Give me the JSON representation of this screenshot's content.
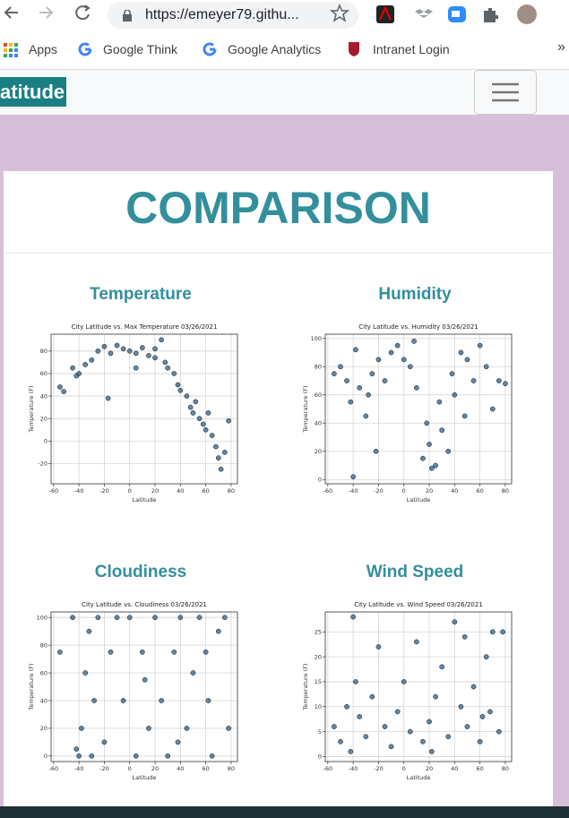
{
  "browser": {
    "url": "https://emeyer79.githu...",
    "bookmarks": [
      "Apps",
      "Google Think",
      "Google Analytics",
      "Intranet Login"
    ],
    "more": "»"
  },
  "navbar": {
    "brand": "atitude"
  },
  "page": {
    "heading": "COMPARISON"
  },
  "panels": [
    {
      "heading": "Temperature",
      "chart_data": {
        "type": "scatter",
        "title": "City Latitude vs. Max Temperature 03/26/2021",
        "x_label": "Latitude",
        "y_label": "Temperature (F)",
        "color": "#2b5f8a",
        "xlim": [
          -62,
          85
        ],
        "xticks": [
          -60,
          -40,
          -20,
          0,
          20,
          40,
          60,
          80
        ],
        "ylim": [
          -38,
          95
        ],
        "yticks": [
          -20,
          0,
          20,
          40,
          60,
          80
        ],
        "grid": true,
        "x": [
          -55,
          -52,
          -45,
          -40,
          -35,
          -30,
          -25,
          -20,
          -17,
          -15,
          -10,
          -5,
          0,
          5,
          10,
          15,
          20,
          25,
          28,
          30,
          35,
          38,
          40,
          45,
          48,
          50,
          52,
          55,
          58,
          60,
          62,
          65,
          68,
          70,
          72,
          75,
          78,
          -42,
          5,
          20
        ],
        "values": [
          48,
          44,
          65,
          60,
          68,
          72,
          80,
          84,
          38,
          78,
          85,
          82,
          80,
          78,
          83,
          76,
          74,
          90,
          70,
          65,
          60,
          50,
          45,
          40,
          30,
          25,
          35,
          20,
          15,
          10,
          25,
          5,
          -5,
          -15,
          -25,
          -10,
          18,
          58,
          65,
          82
        ]
      }
    },
    {
      "heading": "Humidity",
      "chart_data": {
        "type": "scatter",
        "title": "City Latitude vs. Humidity 03/26/2021",
        "x_label": "Latitude",
        "y_label": "Temperature (F)",
        "color": "#2b5f8a",
        "xlim": [
          -62,
          85
        ],
        "xticks": [
          -60,
          -40,
          -20,
          0,
          20,
          40,
          60,
          80
        ],
        "ylim": [
          -3,
          103
        ],
        "yticks": [
          0,
          20,
          40,
          60,
          80,
          100
        ],
        "grid": true,
        "x": [
          -55,
          -50,
          -45,
          -42,
          -40,
          -38,
          -35,
          -30,
          -25,
          -22,
          -20,
          -15,
          -10,
          -5,
          0,
          5,
          10,
          15,
          18,
          20,
          25,
          28,
          30,
          35,
          38,
          40,
          45,
          50,
          55,
          60,
          65,
          70,
          75,
          80,
          48,
          8,
          -28,
          22
        ],
        "values": [
          75,
          80,
          70,
          55,
          2,
          92,
          65,
          45,
          75,
          20,
          85,
          70,
          90,
          95,
          85,
          80,
          65,
          15,
          40,
          25,
          10,
          55,
          35,
          20,
          75,
          60,
          90,
          85,
          70,
          95,
          80,
          50,
          70,
          68,
          45,
          98,
          60,
          8
        ]
      }
    },
    {
      "heading": "Cloudiness",
      "chart_data": {
        "type": "scatter",
        "title": "City Latitude vs. Cloudiness 03/26/2021",
        "x_label": "Latitude",
        "y_label": "Temperature (F)",
        "color": "#2b5f8a",
        "xlim": [
          -62,
          85
        ],
        "xticks": [
          -60,
          -40,
          -20,
          0,
          20,
          40,
          60,
          80
        ],
        "ylim": [
          -4,
          104
        ],
        "yticks": [
          0,
          20,
          40,
          60,
          80,
          100
        ],
        "grid": true,
        "x": [
          -55,
          -45,
          -40,
          -38,
          -35,
          -30,
          -28,
          -25,
          -20,
          -15,
          -10,
          -5,
          0,
          5,
          10,
          15,
          20,
          25,
          30,
          35,
          40,
          45,
          50,
          55,
          60,
          65,
          70,
          75,
          78,
          -42,
          -32,
          12,
          38,
          62
        ],
        "values": [
          75,
          100,
          0,
          20,
          60,
          0,
          40,
          100,
          10,
          75,
          100,
          40,
          100,
          0,
          75,
          20,
          100,
          40,
          0,
          75,
          100,
          20,
          60,
          100,
          75,
          0,
          90,
          100,
          20,
          5,
          90,
          55,
          10,
          40
        ]
      }
    },
    {
      "heading": "Wind Speed",
      "chart_data": {
        "type": "scatter",
        "title": "City Latitude vs. Wind Speed 03/26/2021",
        "x_label": "Latitude",
        "y_label": "Temperature (F)",
        "color": "#2b5f8a",
        "xlim": [
          -62,
          85
        ],
        "xticks": [
          -60,
          -40,
          -20,
          0,
          20,
          40,
          60,
          80
        ],
        "ylim": [
          -1,
          29
        ],
        "yticks": [
          0,
          5,
          10,
          15,
          20,
          25
        ],
        "grid": true,
        "x": [
          -55,
          -50,
          -45,
          -40,
          -38,
          -35,
          -30,
          -25,
          -20,
          -15,
          -10,
          -5,
          0,
          5,
          10,
          15,
          20,
          25,
          30,
          35,
          40,
          45,
          50,
          55,
          60,
          65,
          68,
          70,
          75,
          78,
          -42,
          22,
          48,
          62
        ],
        "values": [
          6,
          3,
          10,
          28,
          15,
          8,
          4,
          12,
          22,
          6,
          2,
          9,
          15,
          5,
          23,
          3,
          7,
          12,
          18,
          4,
          27,
          10,
          6,
          14,
          3,
          20,
          9,
          25,
          5,
          25,
          1,
          1,
          24,
          8
        ]
      }
    }
  ]
}
